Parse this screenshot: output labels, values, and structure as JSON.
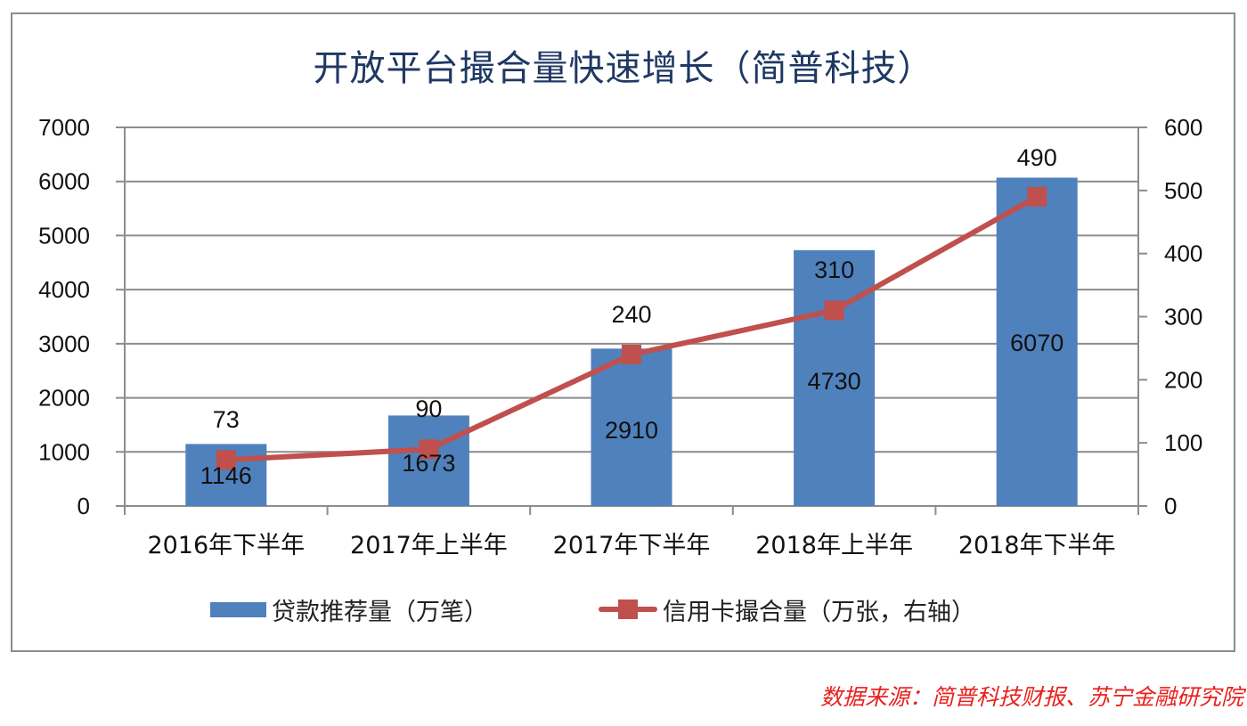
{
  "title": "开放平台撮合量快速增长（简普科技）",
  "source": "数据来源：简普科技财报、苏宁金融研究院",
  "colors": {
    "bar": "#4f81bd",
    "line": "#c0504d",
    "title": "#1f3864",
    "source": "#e8211d",
    "grid": "#8c8c8c"
  },
  "legend": {
    "bar_label": "贷款推荐量（万笔）",
    "line_label": "信用卡撮合量（万张，右轴）"
  },
  "chart_data": {
    "type": "bar+line",
    "title": "开放平台撮合量快速增长（简普科技）",
    "categories": [
      "2016年下半年",
      "2017年上半年",
      "2017年下半年",
      "2018年上半年",
      "2018年下半年"
    ],
    "series": [
      {
        "name": "贷款推荐量（万笔）",
        "type": "bar",
        "axis": "left",
        "values": [
          1146,
          1673,
          2910,
          4730,
          6070
        ]
      },
      {
        "name": "信用卡撮合量（万张，右轴）",
        "type": "line",
        "axis": "right",
        "marker": "square",
        "values": [
          73,
          90,
          240,
          310,
          490
        ]
      }
    ],
    "left_axis": {
      "min": 0,
      "max": 7000,
      "ticks": [
        0,
        1000,
        2000,
        3000,
        4000,
        5000,
        6000,
        7000
      ]
    },
    "right_axis": {
      "min": 0,
      "max": 600,
      "ticks": [
        0,
        100,
        200,
        300,
        400,
        500,
        600
      ]
    },
    "xlabel": "",
    "ylabel": "",
    "grid": true,
    "legend_position": "bottom",
    "data_labels": true
  }
}
